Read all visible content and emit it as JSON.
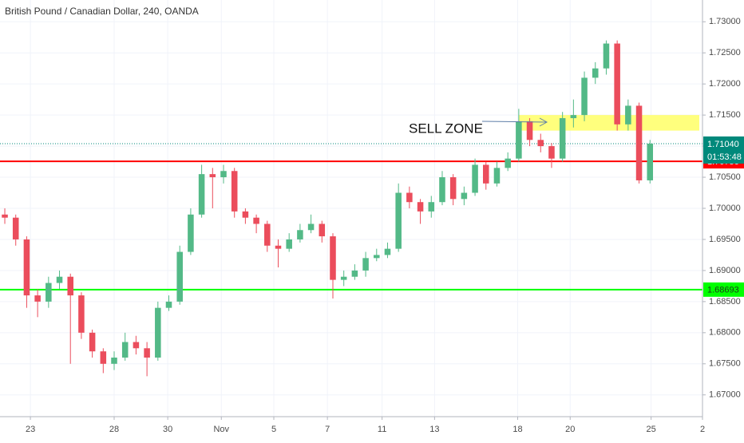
{
  "chart_data": {
    "type": "candlestick",
    "title": "British Pound / Canadian Dollar, 240, OANDA",
    "up_color": "#53b987",
    "down_color": "#eb4d5c",
    "grid": true,
    "ylim": [
      1.6665,
      1.7335
    ],
    "yticks": [
      {
        "value": 1.67,
        "label": "1.67000"
      },
      {
        "value": 1.675,
        "label": "1.67500"
      },
      {
        "value": 1.68,
        "label": "1.68000"
      },
      {
        "value": 1.685,
        "label": "1.68500"
      },
      {
        "value": 1.69,
        "label": "1.69000"
      },
      {
        "value": 1.695,
        "label": "1.69500"
      },
      {
        "value": 1.7,
        "label": "1.70000"
      },
      {
        "value": 1.705,
        "label": "1.70500"
      },
      {
        "value": 1.71,
        "label": "1.71000"
      },
      {
        "value": 1.715,
        "label": "1.71500"
      },
      {
        "value": 1.72,
        "label": "1.72000"
      },
      {
        "value": 1.725,
        "label": "1.72500"
      },
      {
        "value": 1.73,
        "label": "1.73000"
      }
    ],
    "xlim": [
      -0.44,
      63.8
    ],
    "xticks": [
      {
        "value": 2.34,
        "label": "23"
      },
      {
        "value": 10,
        "label": "28"
      },
      {
        "value": 14.9,
        "label": "30"
      },
      {
        "value": 19.8,
        "label": "Nov"
      },
      {
        "value": 24.6,
        "label": "5"
      },
      {
        "value": 29.5,
        "label": "7"
      },
      {
        "value": 34.5,
        "label": "11"
      },
      {
        "value": 39.3,
        "label": "13"
      },
      {
        "value": 46.9,
        "label": "18"
      },
      {
        "value": 51.7,
        "label": "20"
      },
      {
        "value": 59.1,
        "label": "25"
      },
      {
        "value": 63.8,
        "label": "2"
      }
    ],
    "open": [
      1.699,
      1.6985,
      1.695,
      1.686,
      1.685,
      1.688,
      1.689,
      1.686,
      1.68,
      1.677,
      1.675,
      1.676,
      1.6785,
      1.6775,
      1.676,
      1.684,
      1.685,
      1.693,
      1.699,
      1.7055,
      1.705,
      1.706,
      1.6995,
      1.6985,
      1.6975,
      1.694,
      1.6935,
      1.695,
      1.6965,
      1.6975,
      1.6955,
      1.6885,
      1.689,
      1.69,
      1.692,
      1.6925,
      1.6935,
      1.7025,
      1.701,
      1.6995,
      1.701,
      1.705,
      1.7015,
      1.7025,
      1.707,
      1.704,
      1.7065,
      1.708,
      1.714,
      1.711,
      1.71,
      1.708,
      1.7145,
      1.715,
      1.721,
      1.7225,
      1.7265,
      1.7135,
      1.7165,
      1.7045
    ],
    "high": [
      1.7,
      1.699,
      1.6955,
      1.687,
      1.689,
      1.69,
      1.6895,
      1.6865,
      1.6805,
      1.6775,
      1.677,
      1.68,
      1.6795,
      1.6785,
      1.685,
      1.686,
      1.694,
      1.7,
      1.707,
      1.7065,
      1.707,
      1.7065,
      1.7,
      1.699,
      1.698,
      1.695,
      1.696,
      1.6975,
      1.699,
      1.698,
      1.696,
      1.69,
      1.691,
      1.693,
      1.6935,
      1.6945,
      1.704,
      1.7035,
      1.7015,
      1.702,
      1.706,
      1.7055,
      1.7035,
      1.708,
      1.7075,
      1.7075,
      1.709,
      1.716,
      1.7145,
      1.712,
      1.7105,
      1.7155,
      1.7175,
      1.722,
      1.7235,
      1.727,
      1.727,
      1.7175,
      1.717,
      1.711
    ],
    "low": [
      1.6975,
      1.694,
      1.684,
      1.6825,
      1.684,
      1.687,
      1.675,
      1.679,
      1.676,
      1.6735,
      1.674,
      1.6755,
      1.6765,
      1.673,
      1.6755,
      1.6835,
      1.6845,
      1.6925,
      1.6985,
      1.7,
      1.704,
      1.6985,
      1.6975,
      1.696,
      1.693,
      1.6905,
      1.693,
      1.6945,
      1.696,
      1.6945,
      1.6855,
      1.6875,
      1.6885,
      1.689,
      1.6915,
      1.692,
      1.693,
      1.7,
      1.6975,
      1.6985,
      1.7005,
      1.7005,
      1.7005,
      1.702,
      1.703,
      1.7035,
      1.706,
      1.7075,
      1.71,
      1.709,
      1.7065,
      1.7075,
      1.713,
      1.714,
      1.72,
      1.7215,
      1.7125,
      1.7125,
      1.704,
      1.704
    ],
    "close": [
      1.6985,
      1.695,
      1.686,
      1.685,
      1.688,
      1.689,
      1.686,
      1.68,
      1.677,
      1.675,
      1.676,
      1.6785,
      1.6775,
      1.676,
      1.684,
      1.685,
      1.693,
      1.699,
      1.7055,
      1.705,
      1.706,
      1.6995,
      1.6985,
      1.6975,
      1.694,
      1.6935,
      1.695,
      1.6965,
      1.6975,
      1.6955,
      1.6885,
      1.689,
      1.69,
      1.692,
      1.6925,
      1.6935,
      1.7025,
      1.701,
      1.6995,
      1.701,
      1.705,
      1.7015,
      1.7025,
      1.707,
      1.704,
      1.7065,
      1.708,
      1.714,
      1.711,
      1.71,
      1.708,
      1.7145,
      1.715,
      1.721,
      1.7225,
      1.7265,
      1.7135,
      1.7165,
      1.7045,
      1.7104
    ],
    "levels": [
      {
        "value": 1.70756,
        "color": "#ff0000"
      },
      {
        "value": 1.68693,
        "color": "#00ff00"
      }
    ],
    "last_price": {
      "value": 1.7104,
      "label": "1.71040",
      "color": "#00897b"
    },
    "countdown": "01:53:48",
    "zone": {
      "range": [
        1.7125,
        1.715
      ],
      "color": "#ffff66"
    },
    "annotation": "SELL ZONE"
  }
}
